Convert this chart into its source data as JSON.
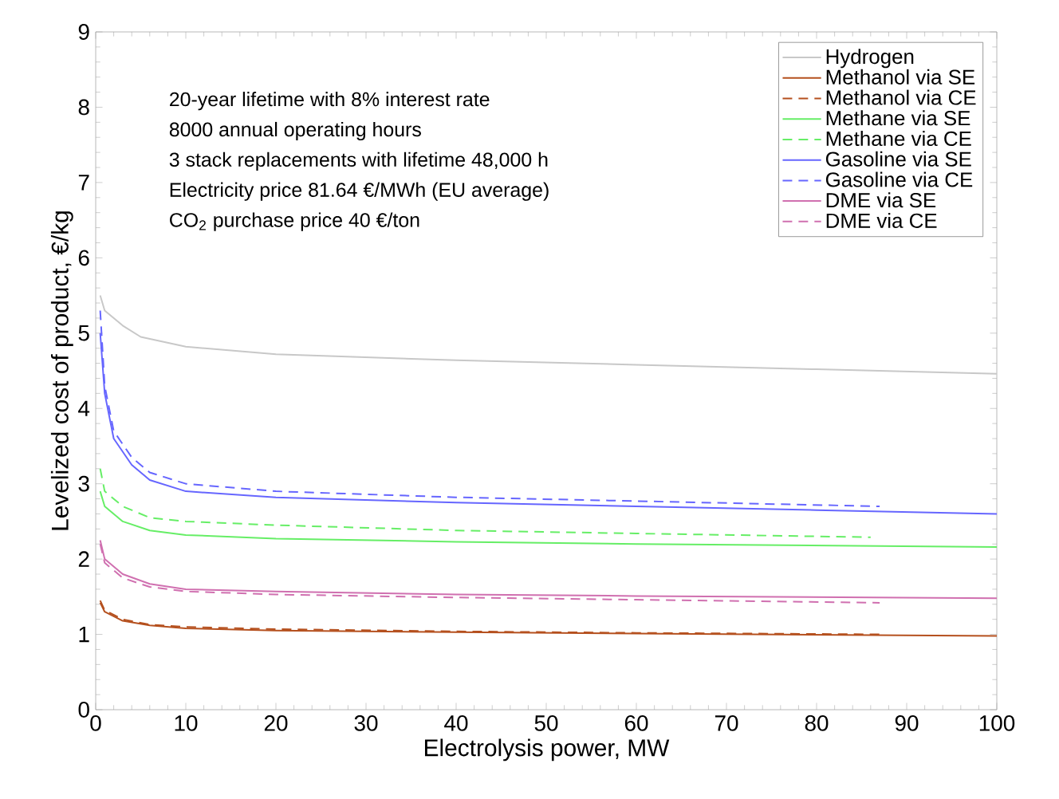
{
  "chart_data": {
    "type": "line",
    "xlabel": "Electrolysis power, MW",
    "ylabel": "Levelized cost of product, €/kg",
    "xlim": [
      0,
      100
    ],
    "ylim": [
      0,
      9
    ],
    "xticks": [
      0,
      10,
      20,
      30,
      40,
      50,
      60,
      70,
      80,
      90,
      100
    ],
    "yticks": [
      0,
      1,
      2,
      3,
      4,
      5,
      6,
      7,
      8,
      9
    ],
    "grid": false,
    "legend": "top right",
    "marker": "none",
    "annotations": [
      "20-year lifetime with 8% interest rate",
      "8000 annual operating hours",
      "3 stack replacements with lifetime 48,000 h",
      "Electricity price 81.64 €/MWh (EU average)",
      "CO$_{2}$ purchase price 40 €/ton"
    ],
    "series": [
      {
        "name": "Hydrogen",
        "color": "#c8c8c8",
        "line_style": "solid",
        "x": [
          0.5,
          1,
          3,
          5,
          10,
          20,
          40,
          60,
          80,
          100
        ],
        "values": [
          5.5,
          5.3,
          5.1,
          4.95,
          4.82,
          4.72,
          4.64,
          4.58,
          4.52,
          4.46
        ]
      },
      {
        "name": "Methanol via SE",
        "color": "#b5501e",
        "line_style": "solid",
        "x": [
          0.5,
          1,
          3,
          6,
          10,
          20,
          40,
          60,
          100
        ],
        "values": [
          1.42,
          1.3,
          1.18,
          1.12,
          1.08,
          1.05,
          1.03,
          1.01,
          0.98
        ]
      },
      {
        "name": "Methanol via CE",
        "color": "#b5501e",
        "line_style": "dashed",
        "x": [
          0.5,
          1,
          3,
          6,
          10,
          20,
          40,
          60,
          87
        ],
        "values": [
          1.45,
          1.32,
          1.2,
          1.13,
          1.1,
          1.07,
          1.04,
          1.02,
          1.0
        ]
      },
      {
        "name": "Methane via SE",
        "color": "#66ee66",
        "line_style": "solid",
        "x": [
          0.5,
          1,
          3,
          6,
          10,
          20,
          40,
          60,
          100
        ],
        "values": [
          2.9,
          2.7,
          2.5,
          2.38,
          2.32,
          2.27,
          2.23,
          2.2,
          2.16
        ]
      },
      {
        "name": "Methane via CE",
        "color": "#66ee66",
        "line_style": "dashed",
        "x": [
          0.5,
          1,
          3,
          6,
          10,
          20,
          40,
          60,
          86
        ],
        "values": [
          3.2,
          2.9,
          2.7,
          2.55,
          2.5,
          2.45,
          2.38,
          2.34,
          2.29
        ]
      },
      {
        "name": "Gasoline via SE",
        "color": "#6666ff",
        "line_style": "solid",
        "x": [
          0.5,
          1,
          2,
          4,
          6,
          10,
          20,
          40,
          60,
          80,
          100
        ],
        "values": [
          5.0,
          4.2,
          3.6,
          3.25,
          3.05,
          2.9,
          2.82,
          2.75,
          2.7,
          2.65,
          2.6
        ]
      },
      {
        "name": "Gasoline via CE",
        "color": "#6666ff",
        "line_style": "dashed",
        "x": [
          0.5,
          1,
          2,
          4,
          6,
          10,
          20,
          40,
          60,
          87
        ],
        "values": [
          5.3,
          4.3,
          3.7,
          3.35,
          3.15,
          3.0,
          2.9,
          2.82,
          2.77,
          2.7
        ]
      },
      {
        "name": "DME via SE",
        "color": "#d070b0",
        "line_style": "solid",
        "x": [
          0.5,
          1,
          3,
          6,
          10,
          20,
          40,
          60,
          100
        ],
        "values": [
          2.25,
          2.0,
          1.8,
          1.67,
          1.6,
          1.57,
          1.53,
          1.51,
          1.48
        ]
      },
      {
        "name": "DME via CE",
        "color": "#d070b0",
        "line_style": "dashed",
        "x": [
          0.5,
          1,
          3,
          6,
          10,
          20,
          40,
          60,
          87
        ],
        "values": [
          2.2,
          1.95,
          1.75,
          1.63,
          1.57,
          1.53,
          1.49,
          1.46,
          1.42
        ]
      }
    ]
  }
}
